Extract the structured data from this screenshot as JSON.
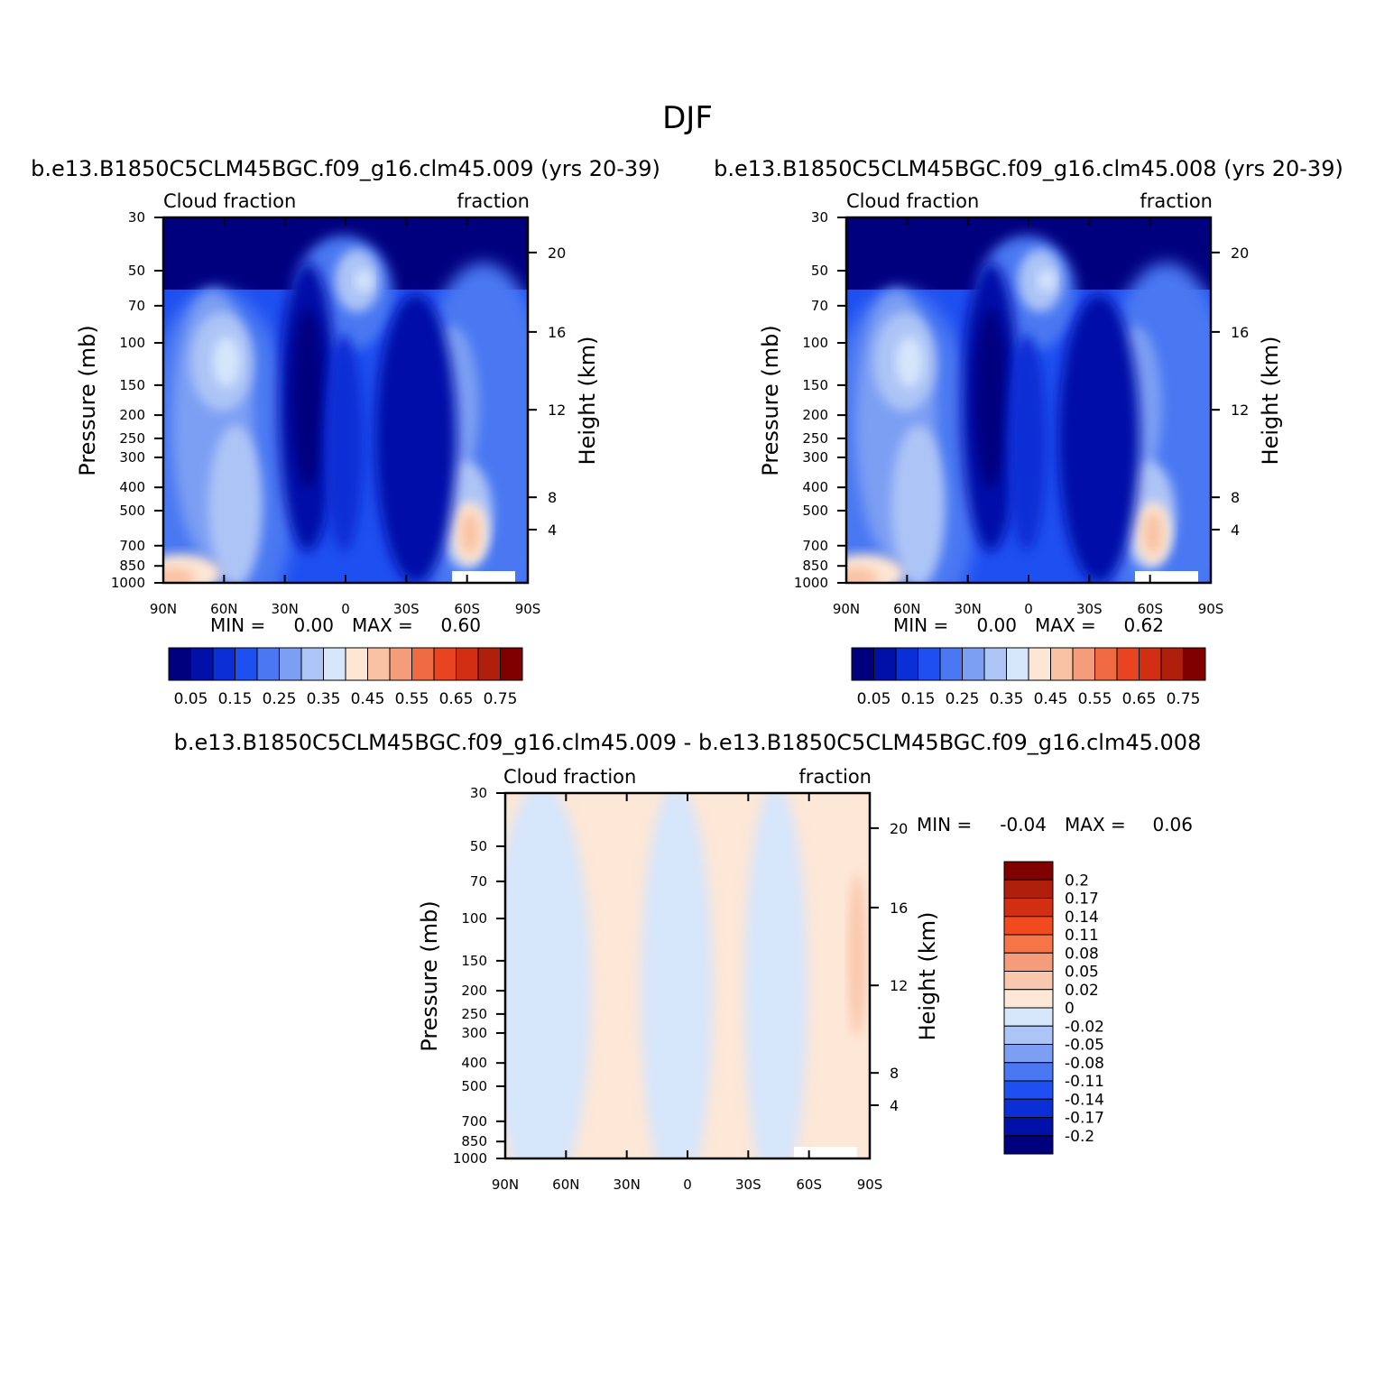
{
  "title": "DJF",
  "colors": {
    "seq": [
      "#00007f",
      "#0010a8",
      "#0a2fd6",
      "#1e4ff0",
      "#4a78f2",
      "#7c9ff3",
      "#adc4f6",
      "#d6e6fb",
      "#fde6d4",
      "#f9c2a4",
      "#f59c7a",
      "#f06a41",
      "#e8441f",
      "#d12e14",
      "#b01f0c",
      "#800000"
    ],
    "div": [
      "#800000",
      "#b01f0c",
      "#d12e14",
      "#f04a1e",
      "#f57548",
      "#f59c7a",
      "#f9c7ad",
      "#fde7d6",
      "#d6e6fb",
      "#adc4f6",
      "#7c9ff3",
      "#4a78f2",
      "#1e4ff0",
      "#0a2fd6",
      "#0010a8",
      "#00007f"
    ]
  },
  "panels": [
    {
      "title": "b.e13.B1850C5CLM45BGC.f09_g16.clm45.009 (yrs 20-39)",
      "left_label": "Cloud fraction",
      "right_label": "fraction",
      "ylabel": "Pressure (mb)",
      "ylabel_right": "Height (km)",
      "min_label": "MIN =",
      "min_value": "0.00",
      "max_label": "MAX =",
      "max_value": "0.60"
    },
    {
      "title": "b.e13.B1850C5CLM45BGC.f09_g16.clm45.008 (yrs 20-39)",
      "left_label": "Cloud fraction",
      "right_label": "fraction",
      "ylabel": "Pressure (mb)",
      "ylabel_right": "Height (km)",
      "min_label": "MIN =",
      "min_value": "0.00",
      "max_label": "MAX =",
      "max_value": "0.62"
    },
    {
      "title": "b.e13.B1850C5CLM45BGC.f09_g16.clm45.009 - b.e13.B1850C5CLM45BGC.f09_g16.clm45.008",
      "left_label": "Cloud fraction",
      "right_label": "fraction",
      "ylabel": "Pressure (mb)",
      "ylabel_right": "Height (km)",
      "min_label": "MIN =",
      "min_value": "-0.04",
      "max_label": "MAX =",
      "max_value": "0.06"
    }
  ],
  "chart_data": {
    "type": "heatmap",
    "x_tick_labels": [
      "90N",
      "60N",
      "30N",
      "0",
      "30S",
      "60S",
      "90S"
    ],
    "x_ticks": [
      90,
      60,
      30,
      0,
      -30,
      -60,
      -90
    ],
    "y_tick_labels": [
      "30",
      "50",
      "70",
      "100",
      "150",
      "200",
      "250",
      "300",
      "400",
      "500",
      "700",
      "850",
      "1000"
    ],
    "y_ticks": [
      30,
      50,
      70,
      100,
      150,
      200,
      250,
      300,
      400,
      500,
      700,
      850,
      1000
    ],
    "yscale": "log",
    "ylim": [
      1000,
      30
    ],
    "height_tick_labels": [
      "20",
      "16",
      "12",
      "8",
      "4"
    ],
    "height_ticks_pressure": [
      42,
      90,
      190,
      440,
      600
    ],
    "colorbar_seq_labels": [
      "0.05",
      "0.15",
      "0.25",
      "0.35",
      "0.45",
      "0.55",
      "0.65",
      "0.75"
    ],
    "colorbar_div_labels": [
      "0.2",
      "0.17",
      "0.14",
      "0.11",
      "0.08",
      "0.05",
      "0.02",
      "0",
      "-0.02",
      "-0.05",
      "-0.08",
      "-0.11",
      "-0.14",
      "-0.17",
      "-0.2"
    ]
  }
}
